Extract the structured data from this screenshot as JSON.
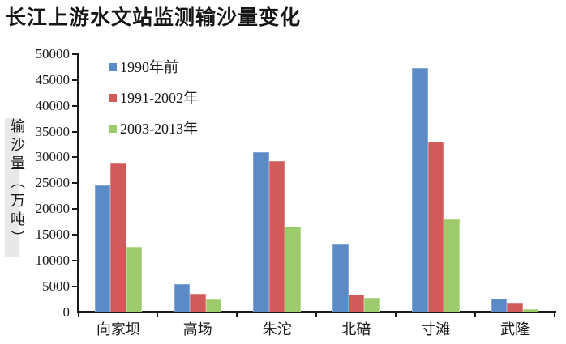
{
  "chart_data": {
    "type": "bar",
    "title": "长江上游水文站监测输沙量变化",
    "ylabel": "输沙量（万吨）",
    "xlabel": "",
    "categories": [
      "向家坝",
      "高场",
      "朱沱",
      "北碚",
      "寸滩",
      "武隆"
    ],
    "series": [
      {
        "name": "1990年前",
        "color": "#5b8ac6",
        "border_color": "#83a6d6",
        "values": [
          24500,
          5400,
          31000,
          13100,
          47300,
          2600
        ]
      },
      {
        "name": "1991-2002年",
        "color": "#d15b5b",
        "border_color": "#de8382",
        "values": [
          29000,
          3600,
          29200,
          3300,
          33000,
          1800
        ]
      },
      {
        "name": "2003-2013年",
        "color": "#9dca6a",
        "border_color": "#b7d991",
        "values": [
          12600,
          2500,
          16500,
          2700,
          18000,
          600
        ]
      }
    ],
    "ylim": [
      0,
      50000
    ],
    "ytick_step": 5000,
    "yticks": [
      0,
      5000,
      10000,
      15000,
      20000,
      25000,
      30000,
      35000,
      40000,
      45000,
      50000
    ],
    "grid": false,
    "legend_position": "top-left-inside",
    "axis_color": "#1a1a1a",
    "text_color": "#1a1a1a",
    "ylabel_band_color": "#e8e8e8",
    "background_color": "#ffffff"
  }
}
